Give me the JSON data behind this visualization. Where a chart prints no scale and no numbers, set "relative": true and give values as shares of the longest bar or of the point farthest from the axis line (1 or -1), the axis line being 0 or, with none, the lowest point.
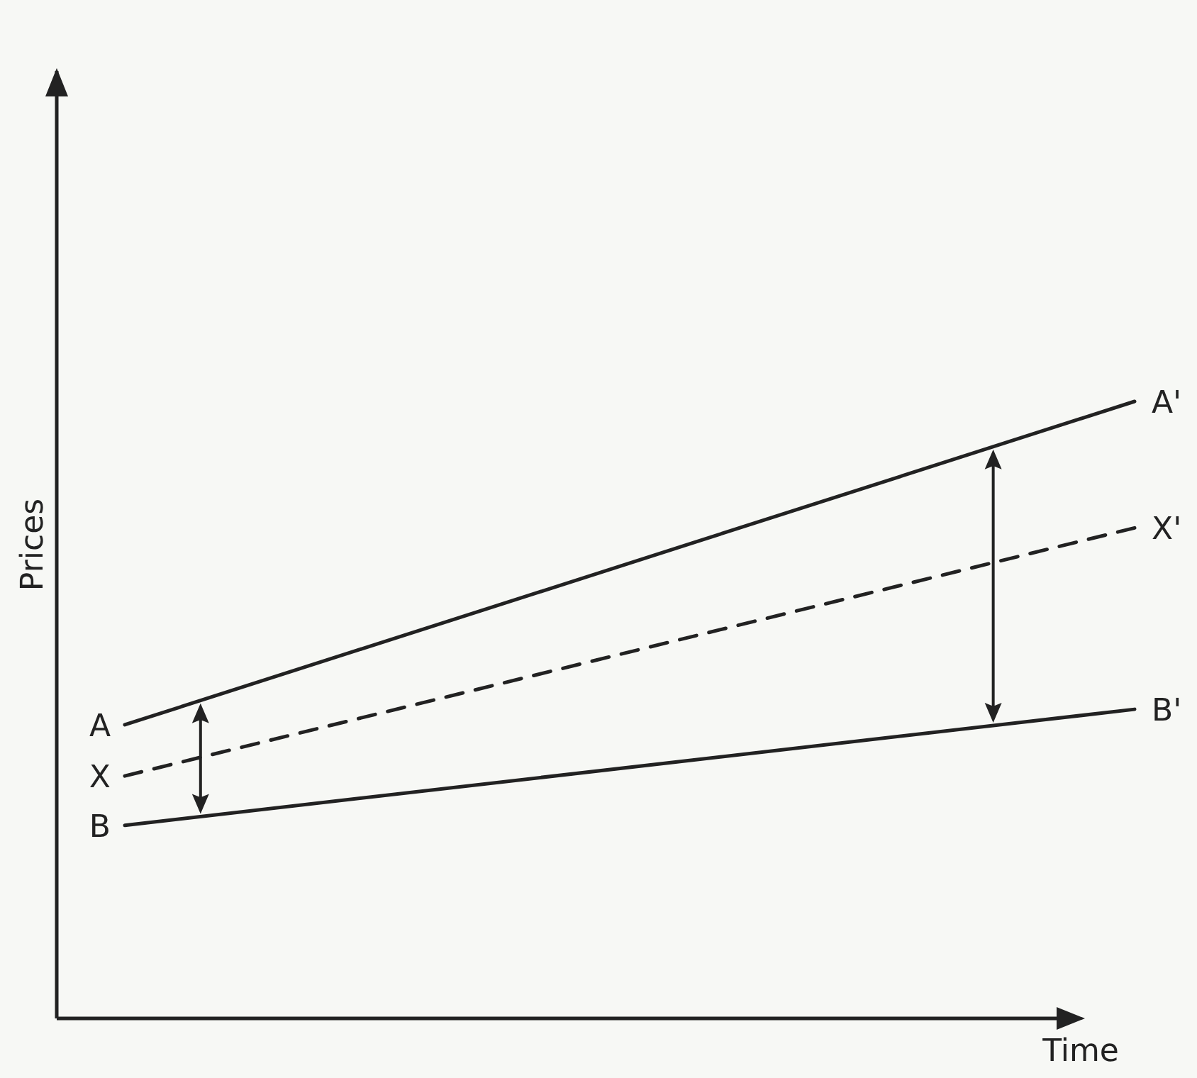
{
  "chart_data": {
    "type": "line",
    "relative": true,
    "xlabel": "Time",
    "ylabel": "Prices",
    "categories": [
      null,
      null
    ],
    "marker": "none",
    "series": [
      {
        "name": "A",
        "color": "#222222",
        "values": [
          0.476,
          1
        ],
        "line_style": "solid"
      },
      {
        "name": "X",
        "color": "#222222",
        "values": [
          0.393,
          0.795
        ],
        "line_style": "dashed"
      },
      {
        "name": "B",
        "color": "#222222",
        "values": [
          0.313,
          0.501
        ],
        "line_style": "solid"
      }
    ],
    "annotations": [
      "A'",
      "X'",
      "B'"
    ]
  }
}
